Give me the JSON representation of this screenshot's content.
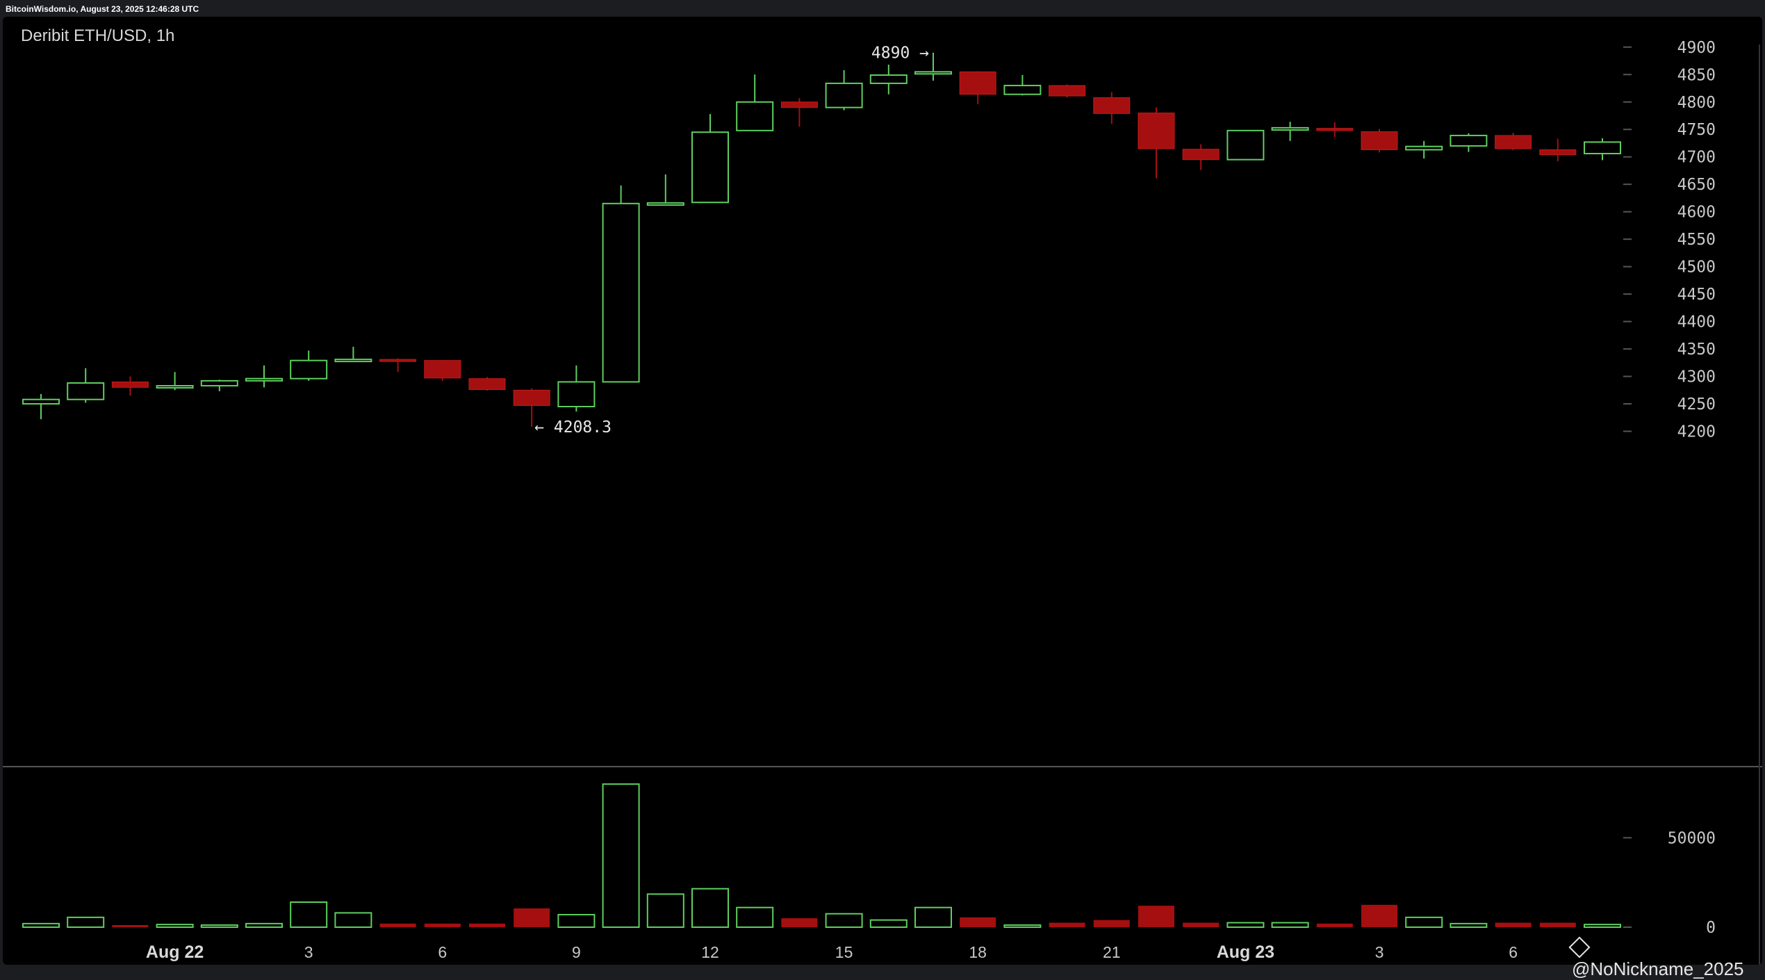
{
  "header": {
    "source_line": "BitcoinWisdom.io, August 23, 2025 12:46:28 UTC"
  },
  "watermark": {
    "text": "@NoNickname_2025",
    "icon": "diamond-logo-icon"
  },
  "colors": {
    "up": "#5ecf5e",
    "down": "#a50f0f",
    "background": "#000000",
    "axis_text": "#c8c8c8"
  },
  "chart_data": {
    "type": "candlestick",
    "title": "Deribit ETH/USD, 1h",
    "x_tick_labels": [
      "Aug 22",
      "3",
      "6",
      "9",
      "12",
      "15",
      "18",
      "21",
      "Aug 23",
      "3",
      "6"
    ],
    "x_tick_candle_index": [
      3,
      6,
      9,
      12,
      15,
      18,
      21,
      24,
      27,
      30,
      33
    ],
    "y_ticks": [
      4200,
      4250,
      4300,
      4350,
      4400,
      4450,
      4500,
      4550,
      4600,
      4650,
      4700,
      4750,
      4800,
      4850,
      4900
    ],
    "ylim": [
      4150,
      4920
    ],
    "volume_ticks": [
      0,
      50000
    ],
    "volume_ylim": [
      0,
      82000
    ],
    "annotations": [
      {
        "text": "4890 →",
        "candle_index": 20,
        "value": 4890
      },
      {
        "text": "← 4208.3",
        "candle_index": 11,
        "value": 4208.3
      }
    ],
    "candles": [
      {
        "o": 4250,
        "h": 4268,
        "l": 4222,
        "c": 4258,
        "v": 2000
      },
      {
        "o": 4258,
        "h": 4315,
        "l": 4252,
        "c": 4288,
        "v": 5500
      },
      {
        "o": 4290,
        "h": 4300,
        "l": 4265,
        "c": 4280,
        "v": 1000
      },
      {
        "o": 4280,
        "h": 4308,
        "l": 4275,
        "c": 4283,
        "v": 1500
      },
      {
        "o": 4283,
        "h": 4294,
        "l": 4273,
        "c": 4292,
        "v": 800
      },
      {
        "o": 4292,
        "h": 4320,
        "l": 4280,
        "c": 4296,
        "v": 2000
      },
      {
        "o": 4296,
        "h": 4347,
        "l": 4292,
        "c": 4329,
        "v": 14000
      },
      {
        "o": 4329,
        "h": 4354,
        "l": 4328,
        "c": 4331,
        "v": 8000
      },
      {
        "o": 4331,
        "h": 4333,
        "l": 4308,
        "c": 4328,
        "v": 2000
      },
      {
        "o": 4329,
        "h": 4330,
        "l": 4292,
        "c": 4297,
        "v": 2000
      },
      {
        "o": 4296,
        "h": 4299,
        "l": 4274,
        "c": 4276,
        "v": 2000
      },
      {
        "o": 4275,
        "h": 4278,
        "l": 4208.3,
        "c": 4247,
        "v": 10500
      },
      {
        "o": 4245,
        "h": 4320,
        "l": 4236,
        "c": 4290,
        "v": 7000
      },
      {
        "o": 4290,
        "h": 4648,
        "l": 4290,
        "c": 4615,
        "v": 80000
      },
      {
        "o": 4615,
        "h": 4668,
        "l": 4614,
        "c": 4616,
        "v": 18500
      },
      {
        "o": 4617,
        "h": 4778,
        "l": 4617,
        "c": 4745,
        "v": 21500
      },
      {
        "o": 4748,
        "h": 4850,
        "l": 4748,
        "c": 4800,
        "v": 11000
      },
      {
        "o": 4800,
        "h": 4807,
        "l": 4755,
        "c": 4790,
        "v": 5000
      },
      {
        "o": 4790,
        "h": 4858,
        "l": 4785,
        "c": 4834,
        "v": 7500
      },
      {
        "o": 4834,
        "h": 4868,
        "l": 4814,
        "c": 4849,
        "v": 4000
      },
      {
        "o": 4852,
        "h": 4890,
        "l": 4839,
        "c": 4855,
        "v": 11000
      },
      {
        "o": 4855,
        "h": 4856,
        "l": 4796,
        "c": 4814,
        "v": 5500
      },
      {
        "o": 4814,
        "h": 4849,
        "l": 4812,
        "c": 4830,
        "v": 1000
      },
      {
        "o": 4830,
        "h": 4832,
        "l": 4808,
        "c": 4811,
        "v": 2500
      },
      {
        "o": 4808,
        "h": 4818,
        "l": 4760,
        "c": 4779,
        "v": 4000
      },
      {
        "o": 4780,
        "h": 4790,
        "l": 4661,
        "c": 4715,
        "v": 12000
      },
      {
        "o": 4714,
        "h": 4723,
        "l": 4676,
        "c": 4695,
        "v": 2500
      },
      {
        "o": 4695,
        "h": 4748,
        "l": 4694,
        "c": 4748,
        "v": 2500
      },
      {
        "o": 4749,
        "h": 4764,
        "l": 4729,
        "c": 4753,
        "v": 2500
      },
      {
        "o": 4752,
        "h": 4763,
        "l": 4736,
        "c": 4748,
        "v": 2000
      },
      {
        "o": 4746,
        "h": 4751,
        "l": 4708,
        "c": 4713,
        "v": 12500
      },
      {
        "o": 4713,
        "h": 4729,
        "l": 4697,
        "c": 4719,
        "v": 5500
      },
      {
        "o": 4720,
        "h": 4743,
        "l": 4709,
        "c": 4739,
        "v": 2000
      },
      {
        "o": 4739,
        "h": 4744,
        "l": 4712,
        "c": 4715,
        "v": 2500
      },
      {
        "o": 4713,
        "h": 4733,
        "l": 4692,
        "c": 4704,
        "v": 2500
      },
      {
        "o": 4706,
        "h": 4734,
        "l": 4694,
        "c": 4727,
        "v": 1500
      }
    ]
  }
}
